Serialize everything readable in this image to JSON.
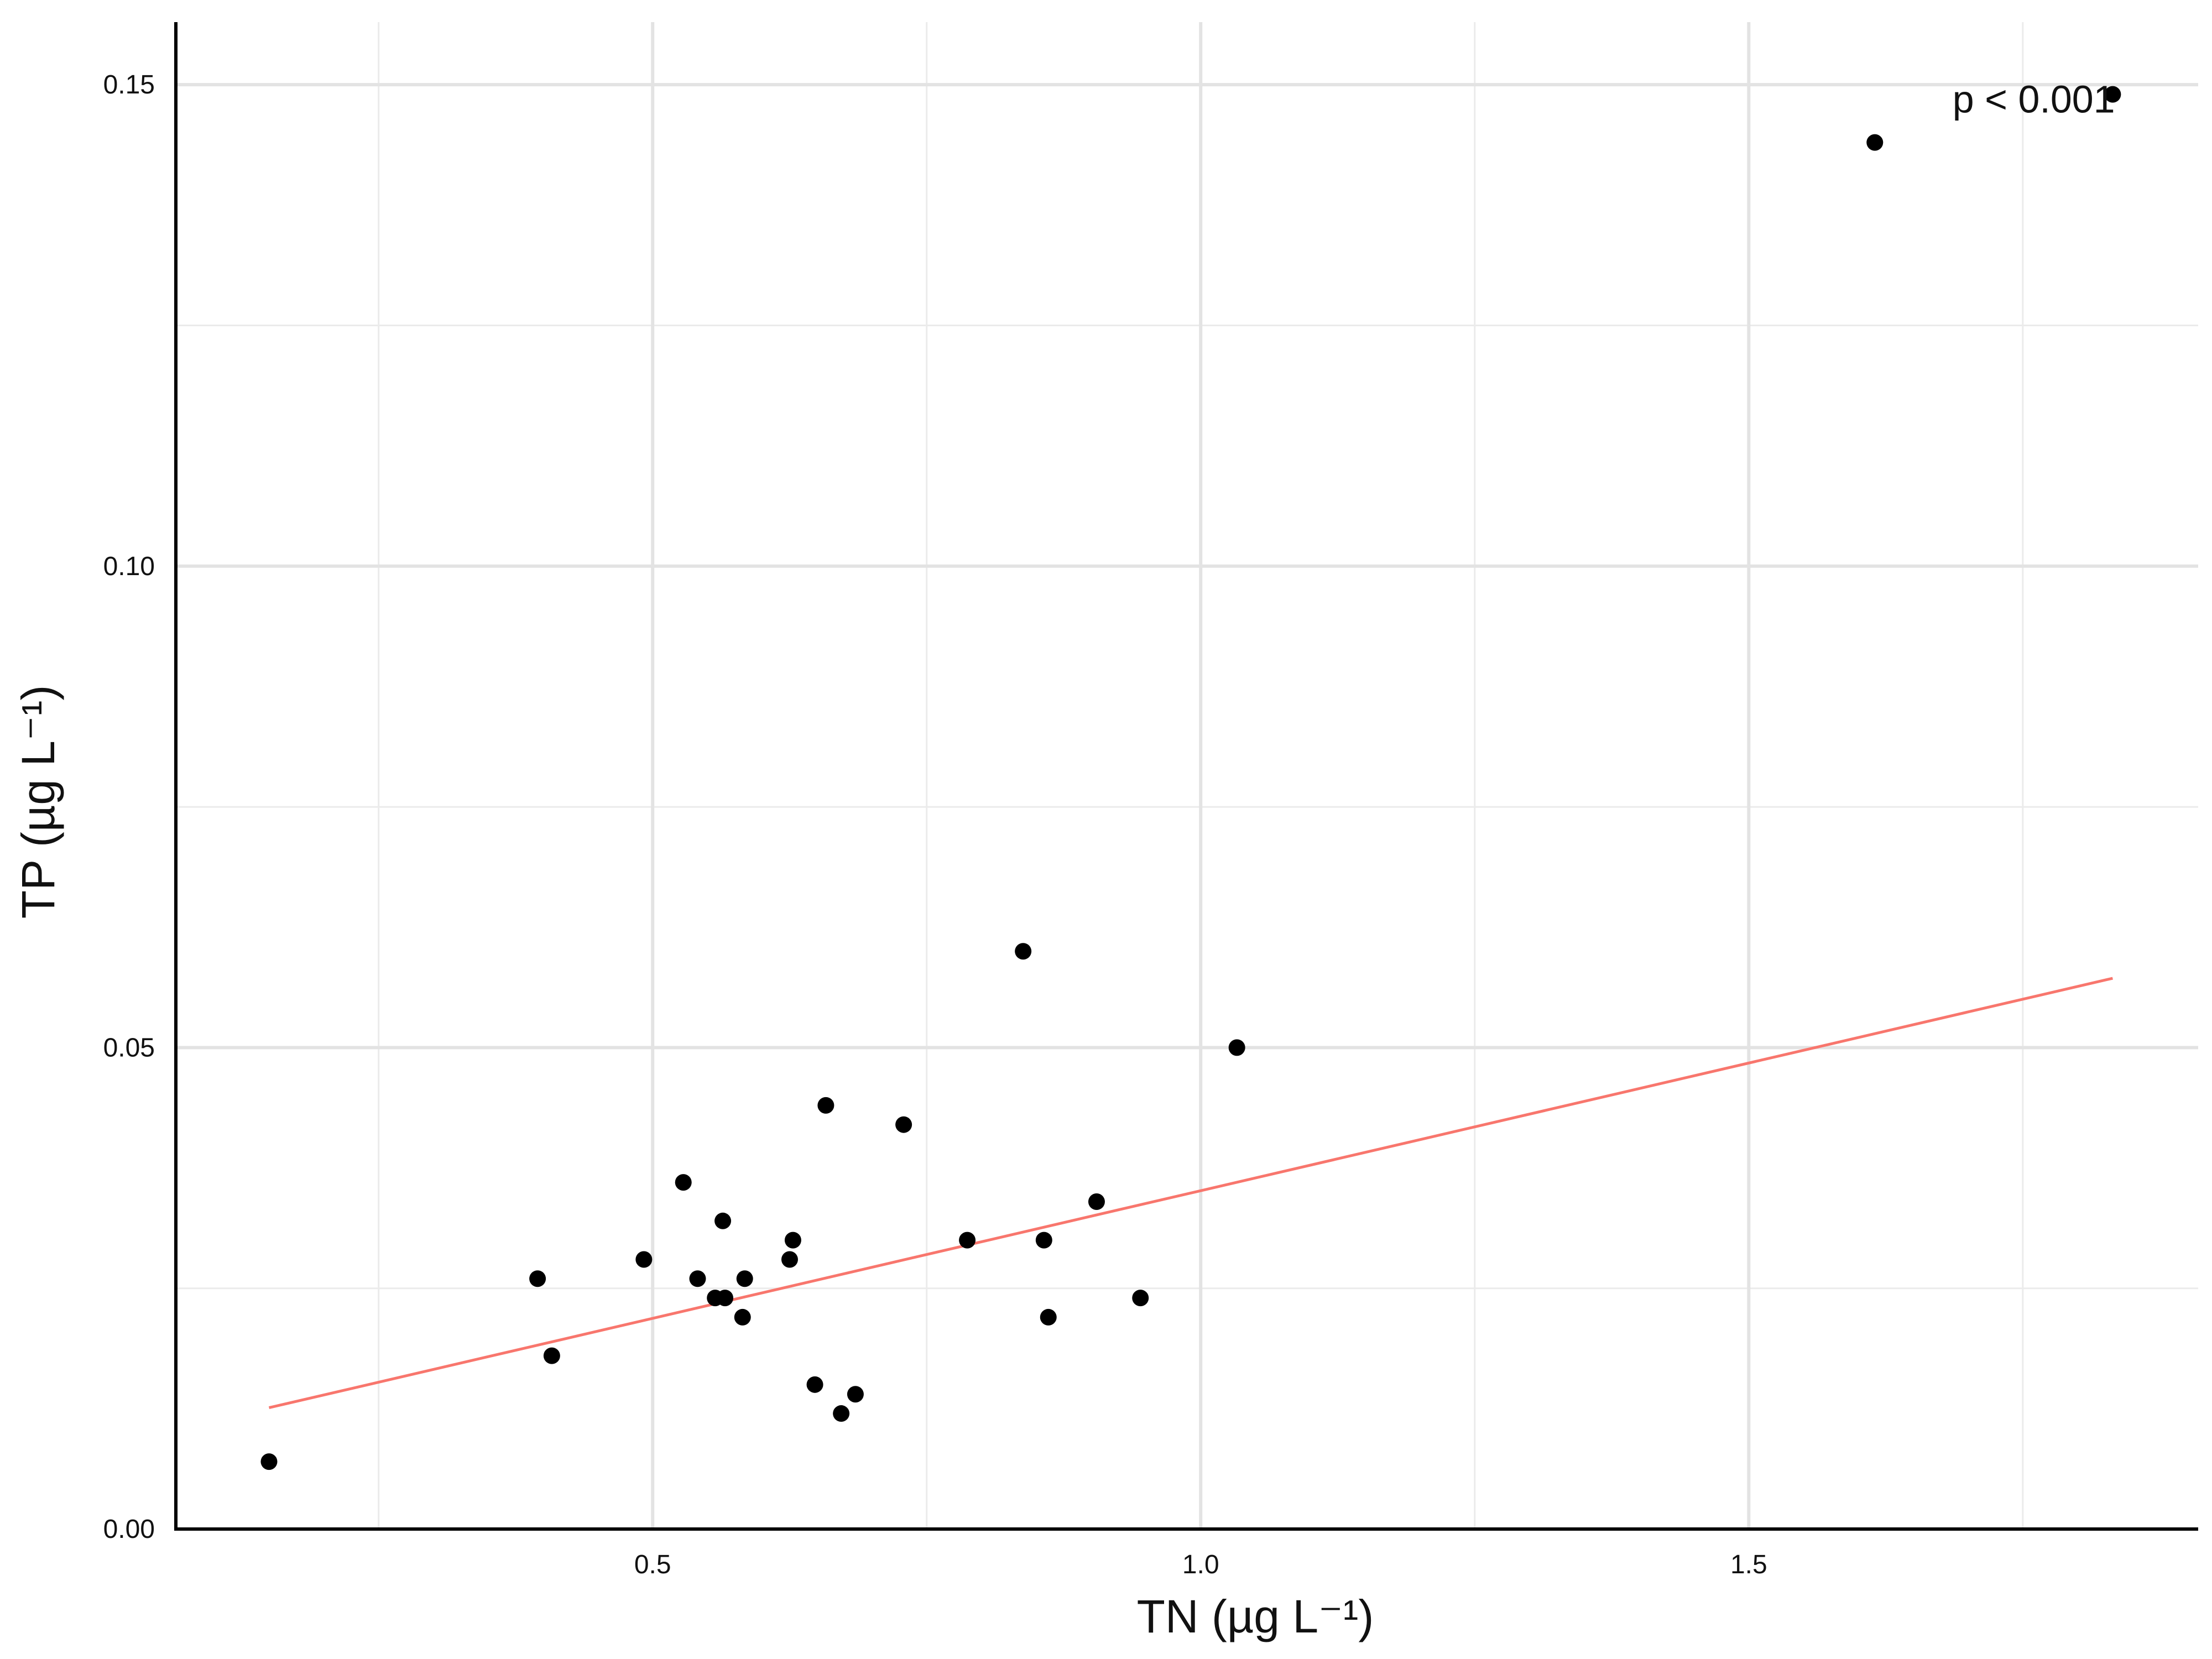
{
  "chart_data": {
    "type": "scatter",
    "title": "",
    "xlabel": "TN (µg L⁻¹)",
    "ylabel": "TP (µg L⁻¹)",
    "xlim": [
      0.065,
      1.91
    ],
    "ylim": [
      0,
      0.1565
    ],
    "x_ticks": [
      0.5,
      1.0,
      1.5
    ],
    "x_tick_labels": [
      "0.5",
      "1.0",
      "1.5"
    ],
    "x_minor_ticks": [
      0.25,
      0.75,
      1.25,
      1.75
    ],
    "y_ticks": [
      0,
      0.05,
      0.1,
      0.15
    ],
    "y_tick_labels": [
      "0.00",
      "0.05",
      "0.10",
      "0.15"
    ],
    "y_minor_ticks": [
      0.025,
      0.075,
      0.125
    ],
    "grid": true,
    "point_color": "#000000",
    "points": [
      {
        "x": 0.15,
        "y": 0.007
      },
      {
        "x": 0.395,
        "y": 0.026
      },
      {
        "x": 0.408,
        "y": 0.018
      },
      {
        "x": 0.492,
        "y": 0.028
      },
      {
        "x": 0.528,
        "y": 0.036
      },
      {
        "x": 0.541,
        "y": 0.026
      },
      {
        "x": 0.557,
        "y": 0.024
      },
      {
        "x": 0.564,
        "y": 0.032
      },
      {
        "x": 0.566,
        "y": 0.024
      },
      {
        "x": 0.584,
        "y": 0.026
      },
      {
        "x": 0.582,
        "y": 0.022
      },
      {
        "x": 0.625,
        "y": 0.028
      },
      {
        "x": 0.628,
        "y": 0.03
      },
      {
        "x": 0.648,
        "y": 0.015
      },
      {
        "x": 0.658,
        "y": 0.044
      },
      {
        "x": 0.672,
        "y": 0.012
      },
      {
        "x": 0.685,
        "y": 0.014
      },
      {
        "x": 0.729,
        "y": 0.042
      },
      {
        "x": 0.787,
        "y": 0.03
      },
      {
        "x": 0.838,
        "y": 0.06
      },
      {
        "x": 0.857,
        "y": 0.03
      },
      {
        "x": 0.861,
        "y": 0.022
      },
      {
        "x": 0.905,
        "y": 0.034
      },
      {
        "x": 0.945,
        "y": 0.024
      },
      {
        "x": 1.033,
        "y": 0.05
      },
      {
        "x": 1.615,
        "y": 0.144
      },
      {
        "x": 1.832,
        "y": 0.149
      }
    ],
    "fit_line": {
      "color": "#F8766D",
      "x": [
        0.15,
        1.832
      ],
      "y": [
        0.0126,
        0.0572
      ]
    },
    "annotation": {
      "text": "p < 0.001",
      "x": 1.76,
      "y": 0.1485
    }
  }
}
